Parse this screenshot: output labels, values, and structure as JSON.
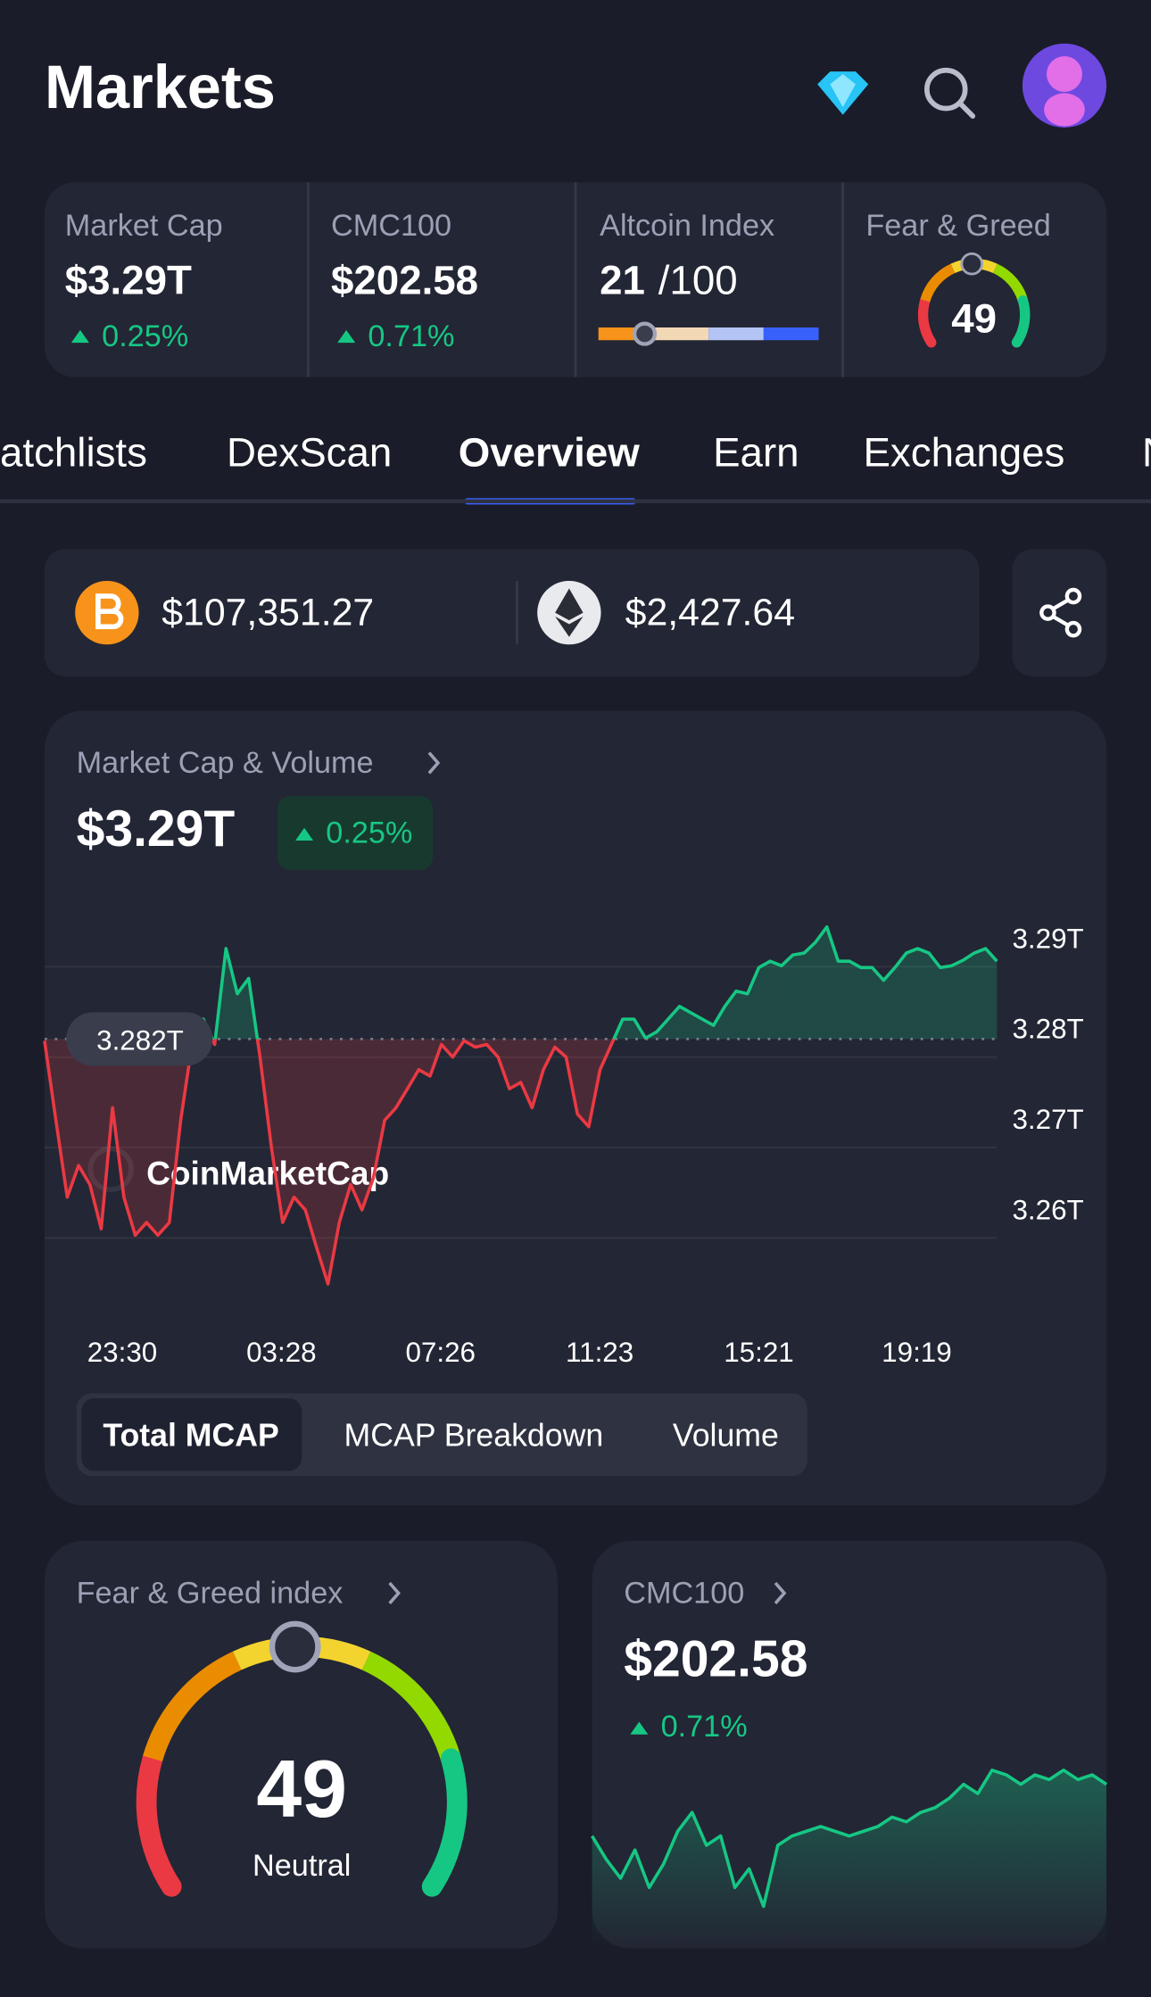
{
  "header": {
    "title": "Markets"
  },
  "stats": [
    {
      "label": "Market Cap",
      "value": "$3.29T",
      "change": "0.25%"
    },
    {
      "label": "CMC100",
      "value": "$202.58",
      "change": "0.71%"
    },
    {
      "label": "Altcoin Index",
      "value": 21,
      "max": {
        "value": 100,
        "label": "/100"
      }
    },
    {
      "label": "Fear & Greed",
      "value": 49
    }
  ],
  "tabs": {
    "items": [
      "atchlists",
      "DexScan",
      "Overview",
      "Earn",
      "Exchanges",
      "N"
    ],
    "active": 2
  },
  "prices": [
    {
      "price": "$107,351.27"
    },
    {
      "price": "$2,427.64"
    }
  ],
  "chart_card": {
    "title": "Market Cap & Volume",
    "value": "$3.29T",
    "change": "0.25%",
    "buttons": [
      "Total MCAP",
      "MCAP Breakdown",
      "Volume"
    ],
    "active_button": 0
  },
  "chart_data": {
    "type": "line",
    "watermark": "CoinMarketCap",
    "colors": {
      "up": "#16c784",
      "down": "#ea3943"
    },
    "ylim": [
      3.255,
      3.298
    ],
    "yticks": [
      {
        "value": 3.29,
        "label": "3.29T"
      },
      {
        "value": 3.28,
        "label": "3.28T"
      },
      {
        "value": 3.27,
        "label": "3.27T"
      },
      {
        "value": 3.26,
        "label": "3.26T"
      }
    ],
    "reference": {
      "value": 3.282,
      "label": "3.282T"
    },
    "xtick_labels": [
      "23:30",
      "03:28",
      "07:26",
      "11:23",
      "15:21",
      "19:19"
    ],
    "values": [
      3.2818,
      3.273,
      3.2645,
      3.268,
      3.2659,
      3.261,
      3.2744,
      3.2645,
      3.2603,
      3.2617,
      3.2603,
      3.2617,
      3.273,
      3.2814,
      3.2842,
      3.2814,
      3.292,
      3.287,
      3.2887,
      3.28,
      3.2701,
      3.2617,
      3.2645,
      3.2631,
      3.2589,
      3.2549,
      3.2617,
      3.2659,
      3.2631,
      3.2666,
      3.273,
      3.2744,
      3.2765,
      3.2786,
      3.2779,
      3.2814,
      3.28,
      3.2818,
      3.2811,
      3.2814,
      3.28,
      3.2765,
      3.2772,
      3.2744,
      3.2786,
      3.2811,
      3.28,
      3.2737,
      3.2723,
      3.2786,
      3.2814,
      3.2842,
      3.2842,
      3.2821,
      3.2828,
      3.2842,
      3.2856,
      3.2849,
      3.2842,
      3.2835,
      3.2856,
      3.2873,
      3.287,
      3.2899,
      3.2906,
      3.2901,
      3.2913,
      3.2915,
      3.2927,
      3.2944,
      3.2906,
      3.2906,
      3.2899,
      3.2899,
      3.2885,
      3.2899,
      3.2915,
      3.292,
      3.2915,
      3.2899,
      3.2901,
      3.2907,
      3.2915,
      3.292,
      3.2906
    ]
  },
  "fear_greed_card": {
    "title": "Fear & Greed index",
    "value": 49,
    "label": "Neutral"
  },
  "cmc100_card": {
    "title": "CMC100",
    "value": "$202.58",
    "change": "0.71%",
    "values": [
      202.1,
      201.6,
      201.2,
      201.8,
      201.0,
      201.5,
      202.2,
      202.6,
      201.9,
      202.1,
      201.0,
      201.4,
      200.6,
      201.9,
      202.1,
      202.2,
      202.3,
      202.2,
      202.1,
      202.2,
      202.3,
      202.5,
      202.4,
      202.6,
      202.7,
      202.9,
      203.2,
      203.0,
      203.5,
      203.4,
      203.2,
      203.4,
      203.3,
      203.5,
      203.3,
      203.4,
      203.2
    ]
  }
}
